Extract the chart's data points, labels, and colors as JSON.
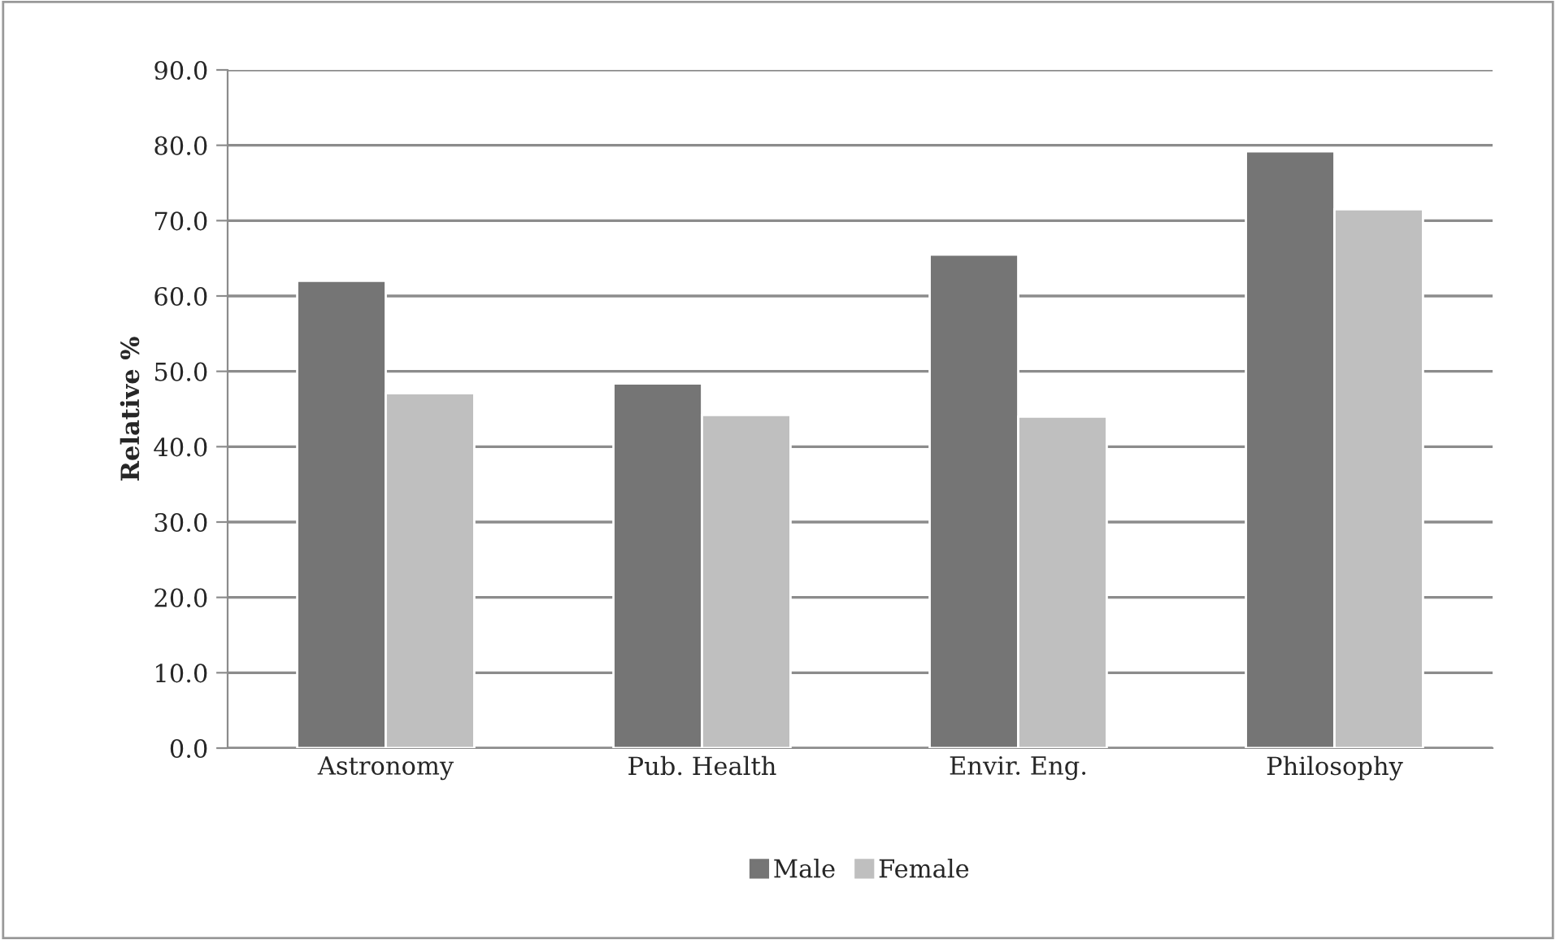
{
  "chart_data": {
    "type": "bar",
    "ylabel": "Relative %",
    "categories": [
      "Astronomy",
      "Pub. Health",
      "Envir. Eng.",
      "Philosophy"
    ],
    "series": [
      {
        "name": "Male",
        "color": "#757575",
        "values": [
          62.0,
          48.4,
          65.5,
          79.2
        ]
      },
      {
        "name": "Female",
        "color": "#bfbfbf",
        "values": [
          47.1,
          44.2,
          44.0,
          71.5
        ]
      }
    ],
    "ylim": [
      0,
      90
    ],
    "yticks": [
      {
        "value": 0,
        "label": "0.0"
      },
      {
        "value": 10,
        "label": "10.0"
      },
      {
        "value": 20,
        "label": "20.0"
      },
      {
        "value": 30,
        "label": "30.0"
      },
      {
        "value": 40,
        "label": "40.0"
      },
      {
        "value": 50,
        "label": "50.0"
      },
      {
        "value": 60,
        "label": "60.0"
      },
      {
        "value": 70,
        "label": "70.0"
      },
      {
        "value": 80,
        "label": "80.0"
      },
      {
        "value": 90,
        "label": "90.0"
      }
    ],
    "grid": "y",
    "legend": "bottom"
  }
}
